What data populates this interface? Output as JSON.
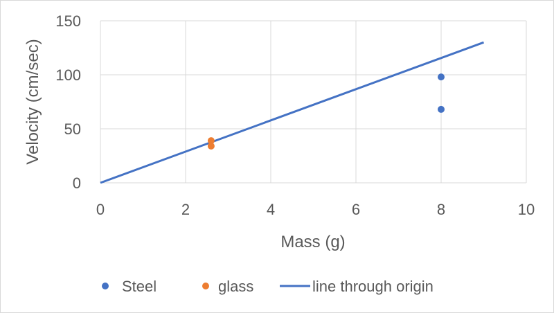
{
  "chart_data": {
    "type": "scatter",
    "title": "",
    "xlabel": "Mass (g)",
    "ylabel": "Velocity (cm/sec)",
    "xlim": [
      0,
      10
    ],
    "ylim": [
      0,
      150
    ],
    "xticks": [
      0,
      2,
      4,
      6,
      8,
      10
    ],
    "yticks": [
      0,
      50,
      100,
      150
    ],
    "grid": true,
    "legend_position": "bottom",
    "series": [
      {
        "name": "Steel",
        "kind": "scatter",
        "color": "#4472c4",
        "points": [
          {
            "x": 8,
            "y": 98
          },
          {
            "x": 8,
            "y": 68
          }
        ]
      },
      {
        "name": "glass",
        "kind": "scatter",
        "color": "#ed7d31",
        "points": [
          {
            "x": 2.6,
            "y": 39
          },
          {
            "x": 2.6,
            "y": 34
          }
        ]
      },
      {
        "name": "line through origin",
        "kind": "line",
        "color": "#4472c4",
        "points": [
          {
            "x": 0,
            "y": 0
          },
          {
            "x": 9,
            "y": 130
          }
        ]
      }
    ]
  }
}
